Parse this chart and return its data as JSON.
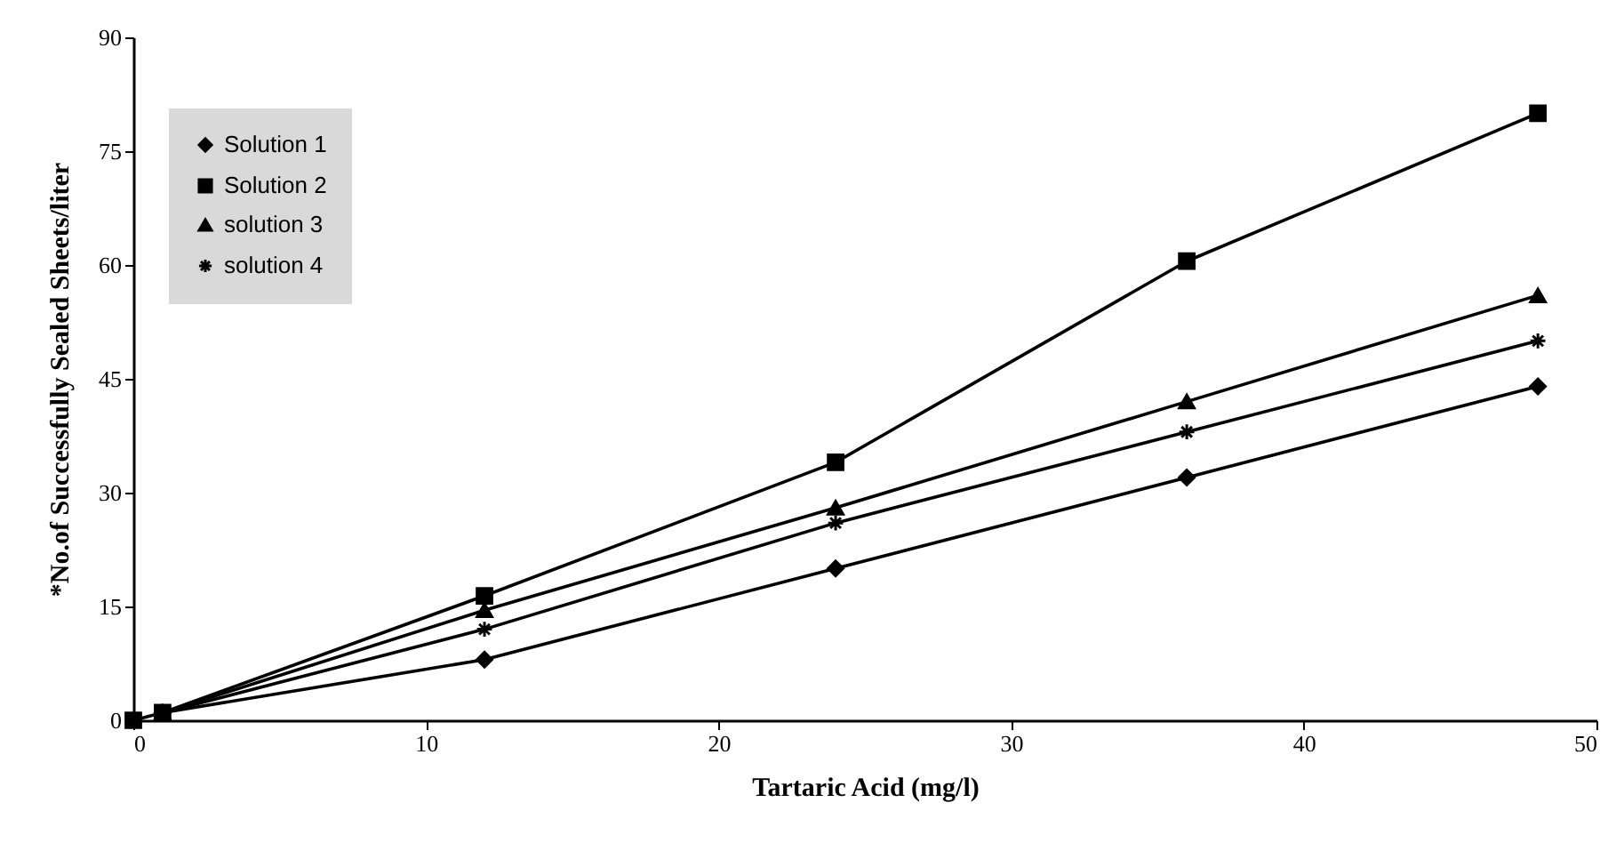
{
  "chart_data": {
    "type": "line",
    "xlabel": "Tartaric Acid (mg/l)",
    "ylabel": "*No.of Successfully Sealed Sheets/liter",
    "x": [
      1,
      12,
      24,
      36,
      48
    ],
    "series": [
      {
        "name": "Solution 1",
        "color": "#000000",
        "marker": "diamond",
        "values": [
          1,
          8,
          20,
          32,
          44
        ]
      },
      {
        "name": "Solution 2",
        "color": "#000000",
        "marker": "square",
        "x": [
          0,
          1,
          12,
          24,
          36,
          48
        ],
        "values": [
          0,
          1,
          16.4,
          34,
          60.5,
          80
        ]
      },
      {
        "name": "solution 3",
        "color": "#000000",
        "marker": "triangle",
        "values": [
          1,
          14.5,
          28,
          42,
          56
        ]
      },
      {
        "name": "solution 4",
        "color": "#000000",
        "marker": "cross",
        "values": [
          1,
          12,
          26,
          38,
          50
        ]
      }
    ],
    "xlim": [
      0,
      50
    ],
    "xticks": [
      0,
      10,
      20,
      30,
      40,
      50
    ],
    "ylim": [
      0,
      90
    ],
    "yticks": [
      0,
      15,
      30,
      45,
      60,
      75,
      90
    ],
    "grid": false,
    "legend": "top left",
    "line_style": "solid"
  }
}
